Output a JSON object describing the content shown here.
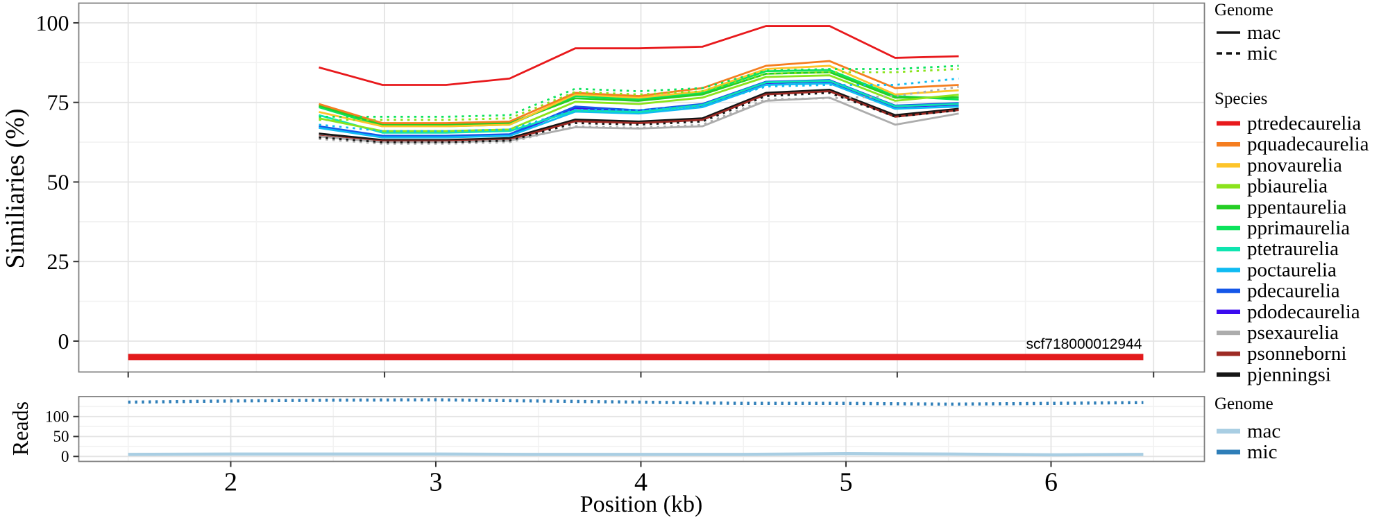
{
  "figure": {
    "y_label_top": "Similiaries (%)",
    "y_label_bottom": "Reads",
    "x_label": "Position (kb)",
    "annotation_label": "scf718000012944",
    "annotation_color": "#e31a1c"
  },
  "legend": {
    "genome_top": {
      "title": "Genome",
      "items": [
        {
          "label": "mac",
          "style": "solid",
          "color": "#111111"
        },
        {
          "label": "mic",
          "style": "dashed",
          "color": "#111111"
        }
      ]
    },
    "species": {
      "title": "Species",
      "items": [
        {
          "label": "ptredecaurelia",
          "color": "#e8191c"
        },
        {
          "label": "pquadecaurelia",
          "color": "#f57e20"
        },
        {
          "label": "pnovaurelia",
          "color": "#fdc42a"
        },
        {
          "label": "pbiaurelia",
          "color": "#8be31c"
        },
        {
          "label": "ppentaurelia",
          "color": "#24ce24"
        },
        {
          "label": "pprimaurelia",
          "color": "#0be35c"
        },
        {
          "label": "ptetraurelia",
          "color": "#0ee5b0"
        },
        {
          "label": "poctaurelia",
          "color": "#0fbbf2"
        },
        {
          "label": "pdecaurelia",
          "color": "#1456e8"
        },
        {
          "label": "pdodecaurelia",
          "color": "#3b0bef"
        },
        {
          "label": "psexaurelia",
          "color": "#acacac"
        },
        {
          "label": "psonneborni",
          "color": "#9e2b25"
        },
        {
          "label": "pjenningsi",
          "color": "#151515"
        }
      ]
    },
    "genome_bottom": {
      "title": "Genome",
      "items": [
        {
          "label": "mac",
          "color": "#a9cee3"
        },
        {
          "label": "mic",
          "color": "#2e7eb8"
        }
      ]
    }
  },
  "chart_data": [
    {
      "type": "line",
      "panel": "similarity",
      "ylabel": "Similiaries (%)",
      "xlim": [
        1.259,
        6.748
      ],
      "ylim": [
        -9.7,
        106.2
      ],
      "y_ticks": [
        0,
        25,
        50,
        75,
        100
      ],
      "x_ticks_unlabeled": [
        1.5,
        2.75,
        4,
        5.25,
        6.5
      ],
      "grid": true,
      "legend_position": "right",
      "x": [
        2.43,
        2.74,
        3.05,
        3.36,
        3.68,
        3.99,
        4.3,
        4.61,
        4.92,
        5.24,
        5.55
      ],
      "series": [
        {
          "name": "ptredecaurelia",
          "genome": "mac",
          "color": "#e8191c",
          "values": [
            86,
            80.5,
            80.5,
            82.5,
            92,
            92,
            92.5,
            99,
            99,
            89,
            89.5
          ]
        },
        {
          "name": "pquadecaurelia",
          "genome": "mac",
          "color": "#f57e20",
          "values": [
            74.5,
            68.5,
            68.5,
            69,
            78,
            77,
            79.5,
            86.5,
            88,
            79.5,
            80.5
          ]
        },
        {
          "name": "pnovaurelia",
          "genome": "mac",
          "color": "#fdc42a",
          "values": [
            72,
            67.5,
            67.5,
            68,
            77.5,
            76.5,
            78.5,
            85.5,
            86.5,
            77.5,
            78.8
          ]
        },
        {
          "name": "pbiaurelia",
          "genome": "mac",
          "color": "#8be31c",
          "values": [
            70,
            66,
            66,
            66.5,
            75.2,
            74.5,
            76.5,
            83,
            83.5,
            75.5,
            77.4
          ]
        },
        {
          "name": "ppentaurelia",
          "genome": "mac",
          "color": "#24ce24",
          "values": [
            74,
            68,
            68,
            68.5,
            76.3,
            75.5,
            77.5,
            84,
            84.5,
            76.5,
            76.6
          ]
        },
        {
          "name": "pprimaurelia",
          "genome": "mac",
          "color": "#0be35c",
          "values": [
            73.5,
            67.5,
            67.5,
            68,
            77,
            76,
            78,
            84.8,
            85.2,
            77,
            75.9
          ]
        },
        {
          "name": "ptetraurelia",
          "genome": "mac",
          "color": "#0ee5b0",
          "values": [
            71,
            65.5,
            65.5,
            66,
            72.5,
            72,
            74.2,
            81.3,
            81.8,
            73.8,
            74.5
          ]
        },
        {
          "name": "poctaurelia",
          "genome": "mac",
          "color": "#0fbbf2",
          "values": [
            67,
            64,
            64,
            64.5,
            72.1,
            71.5,
            73.5,
            80.5,
            81,
            73,
            73.7
          ]
        },
        {
          "name": "pdecaurelia",
          "genome": "mac",
          "color": "#1456e8",
          "values": [
            67.5,
            64.5,
            64.5,
            65,
            73.7,
            72.5,
            74.5,
            81.5,
            82,
            74,
            74.8
          ]
        },
        {
          "name": "pdodecaurelia",
          "genome": "mac",
          "color": "#3b0bef",
          "values": [
            67.2,
            64.2,
            64.2,
            64.8,
            73.2,
            72.2,
            74.1,
            81.1,
            81.6,
            73.6,
            74.3
          ]
        },
        {
          "name": "psexaurelia",
          "genome": "mac",
          "color": "#acacac",
          "values": [
            64.3,
            62.5,
            62.5,
            63,
            67.2,
            66.8,
            67.5,
            75.5,
            76.5,
            68,
            71.5
          ]
        },
        {
          "name": "psonneborni",
          "genome": "mac",
          "color": "#9e2b25",
          "values": [
            64.5,
            62.8,
            62.8,
            63.3,
            69.1,
            68.5,
            69.5,
            77.5,
            78.5,
            70.5,
            72.6
          ]
        },
        {
          "name": "pjenningsi",
          "genome": "mac",
          "color": "#151515",
          "values": [
            65.2,
            63.2,
            63.2,
            63.8,
            69.6,
            69,
            70,
            78,
            79,
            71,
            73
          ]
        },
        {
          "name": "pprimaurelia",
          "genome": "mic",
          "color": "#0be35c",
          "values": [
            70.5,
            70.5,
            70.5,
            71,
            79.3,
            78.5,
            79.5,
            85,
            85.5,
            85.5,
            86.5
          ]
        },
        {
          "name": "pbiaurelia",
          "genome": "mic",
          "color": "#8be31c",
          "values": [
            69.5,
            69.5,
            69.5,
            70,
            78.3,
            77.5,
            78.5,
            84,
            84.5,
            84.5,
            85.5
          ]
        },
        {
          "name": "poctaurelia",
          "genome": "mic",
          "color": "#0fbbf2",
          "values": [
            68,
            66,
            66,
            66.5,
            72.7,
            72.5,
            74,
            80,
            80.5,
            80.5,
            82.5
          ]
        },
        {
          "name": "psexaurelia",
          "genome": "mic",
          "color": "#acacac",
          "values": [
            63.5,
            62,
            62,
            62.5,
            67.5,
            67,
            68,
            76,
            76.3,
            77,
            79.9
          ]
        },
        {
          "name": "pjenningsi",
          "genome": "mic",
          "color": "#151515",
          "values": [
            64,
            62.5,
            62.5,
            63,
            68.5,
            68,
            69,
            77,
            78,
            70.5,
            72.5
          ]
        }
      ],
      "annotation": {
        "label": "scf718000012944",
        "x_start": 1.5,
        "x_end": 6.45,
        "y": -5,
        "color": "#e31a1c"
      }
    },
    {
      "type": "line",
      "panel": "reads",
      "ylabel": "Reads",
      "xlabel": "Position (kb)",
      "xlim": [
        1.259,
        6.748
      ],
      "ylim": [
        -12.5,
        150
      ],
      "y_ticks": [
        0,
        50,
        100
      ],
      "x_ticks": [
        2,
        3,
        4,
        5,
        6
      ],
      "grid": true,
      "x": [
        1.5,
        2,
        2.5,
        3,
        3.5,
        4,
        4.5,
        5,
        5.5,
        6,
        6.45
      ],
      "series": [
        {
          "name": "mac",
          "genome": "mac",
          "color": "#a9cee3",
          "values": [
            5,
            6,
            6,
            6,
            5,
            5,
            5,
            7,
            6,
            4,
            5
          ]
        },
        {
          "name": "mic",
          "genome": "mic",
          "color": "#2e7eb8",
          "values": [
            136,
            139,
            141,
            142,
            139,
            136,
            133,
            133,
            131,
            133,
            135
          ]
        }
      ]
    }
  ]
}
